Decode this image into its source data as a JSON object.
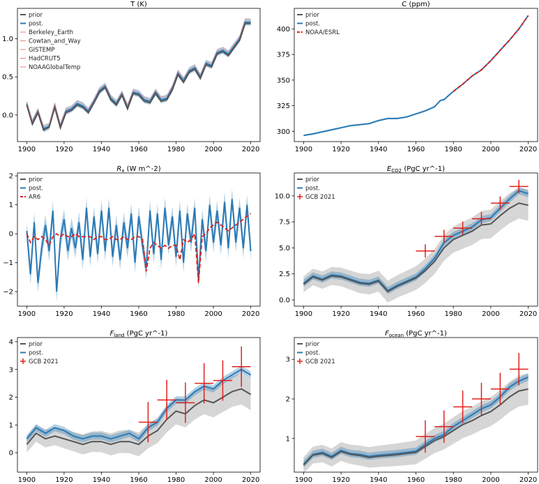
{
  "figure": {
    "colors": {
      "prior": "#555555",
      "post": "#2a7ab5",
      "obs": "#e0201b"
    }
  },
  "chart_data": [
    {
      "type": "line",
      "title": "T (K)",
      "xlim": [
        1895,
        2025
      ],
      "ylim": [
        -0.35,
        1.4
      ],
      "xticks": [
        1900,
        1920,
        1940,
        1960,
        1980,
        2000,
        2020
      ],
      "yticks": [
        0.0,
        0.5,
        1.0
      ],
      "ytick_labels": [
        "0.0",
        "0.5",
        "1.0"
      ],
      "legend": {
        "placement": "upper-left",
        "entries": [
          "prior",
          "post.",
          "Berkeley_Earth",
          "Cowtan_and_Way",
          "GISTEMP",
          "HadCRUT5",
          "NOAAGlobalTemp"
        ]
      },
      "x": [
        1900,
        1903,
        1906,
        1909,
        1912,
        1915,
        1918,
        1921,
        1924,
        1927,
        1930,
        1933,
        1936,
        1939,
        1942,
        1945,
        1948,
        1951,
        1954,
        1957,
        1960,
        1963,
        1966,
        1969,
        1972,
        1975,
        1978,
        1981,
        1984,
        1987,
        1990,
        1993,
        1996,
        1999,
        2002,
        2005,
        2008,
        2011,
        2014,
        2017,
        2020
      ],
      "series": [
        {
          "name": "post.",
          "values": [
            0.15,
            -0.1,
            0.05,
            -0.18,
            -0.15,
            0.12,
            -0.15,
            0.05,
            0.08,
            0.15,
            0.12,
            0.05,
            0.18,
            0.32,
            0.38,
            0.22,
            0.15,
            0.28,
            0.1,
            0.3,
            0.28,
            0.2,
            0.18,
            0.3,
            0.2,
            0.22,
            0.35,
            0.55,
            0.45,
            0.58,
            0.62,
            0.5,
            0.68,
            0.65,
            0.82,
            0.85,
            0.8,
            0.9,
            1.0,
            1.22,
            1.22
          ]
        },
        {
          "name": "prior",
          "values": [
            0.13,
            -0.12,
            0.03,
            -0.2,
            -0.16,
            0.1,
            -0.17,
            0.03,
            0.06,
            0.13,
            0.1,
            0.03,
            0.16,
            0.3,
            0.36,
            0.2,
            0.13,
            0.26,
            0.08,
            0.28,
            0.26,
            0.18,
            0.16,
            0.28,
            0.18,
            0.2,
            0.33,
            0.53,
            0.43,
            0.56,
            0.6,
            0.48,
            0.66,
            0.63,
            0.8,
            0.83,
            0.78,
            0.88,
            0.98,
            1.2,
            1.2
          ]
        },
        {
          "name": "Berkeley_Earth",
          "values": [
            0.17,
            -0.08,
            0.07,
            -0.15,
            -0.12,
            0.15,
            -0.12,
            0.08,
            0.1,
            0.18,
            0.15,
            0.08,
            0.2,
            0.35,
            0.4,
            0.25,
            0.18,
            0.3,
            0.13,
            0.33,
            0.3,
            0.23,
            0.2,
            0.33,
            0.23,
            0.25,
            0.38,
            0.58,
            0.48,
            0.6,
            0.65,
            0.53,
            0.7,
            0.68,
            0.85,
            0.88,
            0.83,
            0.93,
            1.03,
            1.26,
            1.25
          ]
        }
      ]
    },
    {
      "type": "line",
      "title": "C (ppm)",
      "xlim": [
        1895,
        2025
      ],
      "ylim": [
        290,
        420
      ],
      "xticks": [
        1900,
        1920,
        1940,
        1960,
        1980,
        2000,
        2020
      ],
      "yticks": [
        300,
        325,
        350,
        375,
        400
      ],
      "ytick_labels": [
        "300",
        "325",
        "350",
        "375",
        "400"
      ],
      "legend": {
        "placement": "upper-left",
        "entries": [
          "prior",
          "post.",
          "NOAA/ESRL"
        ]
      },
      "x": [
        1900,
        1905,
        1910,
        1915,
        1920,
        1925,
        1930,
        1935,
        1940,
        1945,
        1950,
        1955,
        1960,
        1965,
        1970,
        1973,
        1975,
        1980,
        1985,
        1990,
        1995,
        2000,
        2005,
        2010,
        2015,
        2020
      ],
      "series": [
        {
          "name": "post.",
          "values": [
            296,
            297.5,
            299.5,
            301.5,
            303.5,
            305.5,
            306.5,
            307.5,
            310.5,
            312.5,
            312.5,
            314,
            317,
            320,
            324,
            330,
            331,
            339,
            346,
            354,
            360,
            369,
            379,
            389,
            400,
            413
          ]
        },
        {
          "name": "NOAA/ESRL",
          "x": [
            1980,
            1985,
            1990,
            1995,
            2000,
            2005,
            2010,
            2015,
            2020
          ],
          "values": [
            339,
            346,
            354,
            360,
            369,
            379,
            389,
            400,
            413
          ]
        }
      ]
    },
    {
      "type": "line",
      "title": "R_x (W m^-2)",
      "xlim": [
        1895,
        2025
      ],
      "ylim": [
        -2.5,
        2.1
      ],
      "xticks": [
        1900,
        1920,
        1940,
        1960,
        1980,
        2000,
        2020
      ],
      "yticks": [
        -2,
        -1,
        0,
        1,
        2
      ],
      "ytick_labels": [
        "−2",
        "−1",
        "0",
        "1",
        "2"
      ],
      "legend": {
        "placement": "upper-left",
        "entries": [
          "prior",
          "post.",
          "AR6"
        ]
      },
      "x": [
        1900,
        1902,
        1904,
        1906,
        1908,
        1910,
        1912,
        1914,
        1916,
        1918,
        1920,
        1922,
        1924,
        1926,
        1928,
        1930,
        1932,
        1934,
        1936,
        1938,
        1940,
        1942,
        1944,
        1946,
        1948,
        1950,
        1952,
        1954,
        1956,
        1958,
        1960,
        1962,
        1964,
        1966,
        1968,
        1970,
        1972,
        1974,
        1976,
        1978,
        1980,
        1982,
        1984,
        1986,
        1988,
        1990,
        1992,
        1994,
        1996,
        1998,
        2000,
        2002,
        2004,
        2006,
        2008,
        2010,
        2012,
        2014,
        2016,
        2018,
        2020
      ],
      "series": [
        {
          "name": "post.",
          "values": [
            0.1,
            -1.4,
            0.4,
            -1.7,
            -0.5,
            0.3,
            -0.6,
            0.8,
            -2.0,
            -0.2,
            0.5,
            -0.6,
            0.2,
            -0.5,
            0.4,
            -0.9,
            0.9,
            -0.8,
            0.6,
            -0.7,
            0.8,
            -0.6,
            0.9,
            -0.8,
            0.3,
            -0.9,
            0.4,
            -0.5,
            0.7,
            -1.0,
            0.6,
            -0.4,
            -1.2,
            0.8,
            -0.7,
            0.7,
            -0.9,
            0.9,
            -0.4,
            0.6,
            -0.8,
            0.8,
            -1.0,
            0.7,
            -0.3,
            0.9,
            -1.6,
            0.5,
            -0.6,
            1.0,
            -0.3,
            0.8,
            -0.4,
            1.1,
            -0.5,
            1.2,
            -0.3,
            0.9,
            -0.5,
            1.0,
            -0.6
          ]
        },
        {
          "name": "AR6",
          "values": [
            0.0,
            -0.3,
            -0.1,
            -0.2,
            -0.1,
            -0.2,
            -0.4,
            -0.1,
            0.0,
            -0.1,
            0.0,
            -0.1,
            -0.1,
            0.0,
            -0.1,
            -0.1,
            -0.1,
            -0.1,
            -0.2,
            -0.1,
            -0.1,
            -0.2,
            -0.2,
            -0.1,
            -0.2,
            -0.2,
            -0.1,
            -0.2,
            -0.2,
            -0.1,
            -0.1,
            -0.2,
            -1.3,
            -0.5,
            -0.3,
            -0.4,
            -0.5,
            -0.4,
            -0.5,
            -0.4,
            -0.4,
            -0.9,
            -0.2,
            -0.3,
            -0.2,
            0.0,
            -1.7,
            -0.1,
            0.0,
            0.2,
            0.3,
            0.4,
            0.3,
            0.2,
            0.1,
            0.2,
            0.3,
            0.4,
            0.5,
            0.6,
            0.7
          ]
        }
      ]
    },
    {
      "type": "line",
      "title": "E_CO2 (PgC yr^-1)",
      "xlim": [
        1895,
        2025
      ],
      "ylim": [
        -0.6,
        12.2
      ],
      "xticks": [
        1900,
        1920,
        1940,
        1960,
        1980,
        2000,
        2020
      ],
      "yticks": [
        0.0,
        2.5,
        5.0,
        7.5,
        10.0
      ],
      "ytick_labels": [
        "0.0",
        "2.5",
        "5.0",
        "7.5",
        "10.0"
      ],
      "legend": {
        "placement": "upper-left",
        "entries": [
          "prior",
          "post.",
          "GCB 2021"
        ]
      },
      "x": [
        1900,
        1905,
        1910,
        1915,
        1920,
        1925,
        1930,
        1935,
        1940,
        1945,
        1950,
        1955,
        1960,
        1965,
        1970,
        1975,
        1980,
        1985,
        1990,
        1995,
        2000,
        2005,
        2010,
        2015,
        2020
      ],
      "series": [
        {
          "name": "post.",
          "values": [
            1.6,
            2.3,
            2.0,
            2.4,
            2.3,
            2.0,
            1.7,
            1.6,
            1.9,
            0.9,
            1.4,
            1.8,
            2.2,
            3.0,
            4.0,
            5.5,
            6.2,
            6.6,
            7.0,
            7.7,
            7.9,
            8.8,
            9.7,
            10.5,
            10.2
          ]
        },
        {
          "name": "prior",
          "values": [
            1.5,
            2.2,
            1.9,
            2.3,
            2.2,
            1.9,
            1.6,
            1.5,
            1.8,
            0.8,
            1.3,
            1.7,
            2.1,
            2.8,
            3.7,
            5.0,
            5.8,
            6.2,
            6.6,
            7.2,
            7.3,
            8.1,
            8.8,
            9.3,
            9.1
          ]
        },
        {
          "name": "GCB 2021",
          "x": [
            1965,
            1975,
            1985,
            1995,
            2005,
            2015
          ],
          "values": [
            4.7,
            6.1,
            6.9,
            7.8,
            9.3,
            10.9
          ]
        }
      ]
    },
    {
      "type": "line",
      "title": "F_land (PgC yr^-1)",
      "xlim": [
        1895,
        2025
      ],
      "ylim": [
        -0.7,
        4.15
      ],
      "xticks": [
        1900,
        1920,
        1940,
        1960,
        1980,
        2000,
        2020
      ],
      "yticks": [
        0,
        1,
        2,
        3,
        4
      ],
      "ytick_labels": [
        "0",
        "1",
        "2",
        "3",
        "4"
      ],
      "legend": {
        "placement": "upper-left",
        "entries": [
          "prior",
          "post.",
          "GCB 2021"
        ]
      },
      "x": [
        1900,
        1905,
        1910,
        1915,
        1920,
        1925,
        1930,
        1935,
        1940,
        1945,
        1950,
        1955,
        1960,
        1965,
        1970,
        1975,
        1980,
        1985,
        1990,
        1995,
        2000,
        2005,
        2010,
        2015,
        2020
      ],
      "series": [
        {
          "name": "post.",
          "values": [
            0.5,
            0.9,
            0.7,
            0.9,
            0.8,
            0.6,
            0.5,
            0.6,
            0.6,
            0.5,
            0.6,
            0.7,
            0.5,
            0.9,
            1.1,
            1.6,
            1.9,
            1.9,
            2.2,
            2.4,
            2.3,
            2.6,
            2.8,
            3.0,
            2.8
          ]
        },
        {
          "name": "prior",
          "values": [
            0.3,
            0.7,
            0.5,
            0.6,
            0.5,
            0.4,
            0.3,
            0.4,
            0.4,
            0.3,
            0.4,
            0.4,
            0.3,
            0.6,
            0.8,
            1.2,
            1.5,
            1.4,
            1.7,
            1.9,
            1.8,
            2.0,
            2.2,
            2.3,
            2.1
          ]
        },
        {
          "name": "GCB 2021",
          "x": [
            1965,
            1975,
            1985,
            1995,
            2005,
            2015
          ],
          "values": [
            1.1,
            1.9,
            1.8,
            2.5,
            2.6,
            3.1
          ]
        }
      ]
    },
    {
      "type": "line",
      "title": "F_ocean (PgC yr^-1)",
      "xlim": [
        1895,
        2025
      ],
      "ylim": [
        0.15,
        3.55
      ],
      "xticks": [
        1900,
        1920,
        1940,
        1960,
        1980,
        2000,
        2020
      ],
      "yticks": [
        1,
        2,
        3
      ],
      "ytick_labels": [
        "1",
        "2",
        "3"
      ],
      "legend": {
        "placement": "upper-left",
        "entries": [
          "prior",
          "post.",
          "GCB 2021"
        ]
      },
      "x": [
        1900,
        1905,
        1910,
        1915,
        1920,
        1925,
        1930,
        1935,
        1940,
        1945,
        1950,
        1955,
        1960,
        1965,
        1970,
        1975,
        1980,
        1985,
        1990,
        1995,
        2000,
        2005,
        2010,
        2015,
        2020
      ],
      "series": [
        {
          "name": "post.",
          "values": [
            0.35,
            0.6,
            0.65,
            0.55,
            0.7,
            0.62,
            0.6,
            0.55,
            0.58,
            0.6,
            0.62,
            0.65,
            0.68,
            0.85,
            1.0,
            1.1,
            1.3,
            1.45,
            1.6,
            1.75,
            1.85,
            2.05,
            2.3,
            2.45,
            2.55
          ]
        },
        {
          "name": "prior",
          "values": [
            0.33,
            0.58,
            0.62,
            0.52,
            0.67,
            0.6,
            0.57,
            0.52,
            0.55,
            0.57,
            0.59,
            0.62,
            0.65,
            0.8,
            0.95,
            1.05,
            1.2,
            1.35,
            1.45,
            1.58,
            1.68,
            1.85,
            2.05,
            2.2,
            2.25
          ]
        },
        {
          "name": "GCB 2021",
          "x": [
            1965,
            1975,
            1985,
            1995,
            2005,
            2015
          ],
          "values": [
            1.05,
            1.3,
            1.8,
            2.0,
            2.25,
            2.75
          ]
        }
      ]
    }
  ]
}
